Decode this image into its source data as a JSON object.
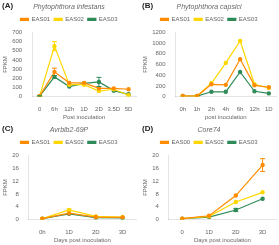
{
  "chart_data": [
    {
      "type": "line",
      "title": "Phytophthora infestans",
      "annotations": [
        "(A)"
      ],
      "xlabel": "Post inoculation",
      "ylabel": "FPKM",
      "categories": [
        "0",
        "6h",
        "12h",
        "1D",
        "2D",
        "3.5D",
        "5D"
      ],
      "series": [
        {
          "name": "EAS01",
          "color": "#FF8C00",
          "values": [
            5,
            270,
            150,
            150,
            90,
            90,
            80
          ],
          "yerr": [
            5,
            40,
            0,
            0,
            0,
            0,
            0
          ]
        },
        {
          "name": "EAS02",
          "color": "#FFD700",
          "values": [
            5,
            550,
            130,
            130,
            60,
            80,
            15
          ],
          "yerr": [
            5,
            50,
            0,
            0,
            0,
            0,
            0
          ]
        },
        {
          "name": "EAS03",
          "color": "#2E8B57",
          "values": [
            5,
            215,
            110,
            145,
            160,
            65,
            25
          ],
          "yerr": [
            5,
            15,
            0,
            0,
            50,
            0,
            0
          ]
        }
      ],
      "ylim": [
        0,
        700
      ],
      "yticks": [
        0,
        100,
        200,
        300,
        400,
        500,
        600,
        700
      ],
      "grid": false,
      "legend": "top",
      "marker": "circle"
    },
    {
      "type": "line",
      "title": "Phytophthora capsici",
      "annotations": [
        "(B)"
      ],
      "xlabel": "post inoculation",
      "ylabel": "FPKM",
      "categories": [
        "0h",
        "1h",
        "2h",
        "4h",
        "6h",
        "12h",
        "1D"
      ],
      "series": [
        {
          "name": "EAS01",
          "color": "#FF8C00",
          "values": [
            10,
            10,
            230,
            220,
            700,
            210,
            175
          ],
          "yerr": [
            0,
            0,
            0,
            0,
            0,
            0,
            0
          ]
        },
        {
          "name": "EAS02",
          "color": "#FFD700",
          "values": [
            10,
            10,
            250,
            630,
            1040,
            230,
            160
          ],
          "yerr": [
            0,
            0,
            0,
            0,
            0,
            0,
            0
          ]
        },
        {
          "name": "EAS03",
          "color": "#2E8B57",
          "values": [
            10,
            10,
            90,
            90,
            460,
            100,
            60
          ],
          "yerr": [
            0,
            0,
            0,
            0,
            0,
            0,
            0
          ]
        }
      ],
      "ylim": [
        0,
        1200
      ],
      "yticks": [
        0,
        200,
        400,
        600,
        800,
        1000,
        1200
      ],
      "grid": false,
      "legend": "top",
      "marker": "circle"
    },
    {
      "type": "line",
      "title": "Avrblb2-69P",
      "annotations": [
        "(C)"
      ],
      "xlabel": "Days post inoculation",
      "ylabel": "FPKM",
      "categories": [
        "0h",
        "1D",
        "2D",
        "3D"
      ],
      "series": [
        {
          "name": "EAS01",
          "color": "#FF8C00",
          "values": [
            0.3,
            2.0,
            0.8,
            0.7
          ],
          "yerr": [
            0,
            0,
            0,
            0
          ]
        },
        {
          "name": "EAS02",
          "color": "#FFD700",
          "values": [
            0.3,
            3.0,
            1.0,
            0.8
          ],
          "yerr": [
            0,
            0.3,
            0,
            0
          ]
        },
        {
          "name": "EAS03",
          "color": "#2E8B57",
          "values": [
            0.3,
            1.8,
            0.6,
            0.5
          ],
          "yerr": [
            0,
            0,
            0,
            0
          ]
        }
      ],
      "ylim": [
        0,
        20
      ],
      "yticks": [
        0,
        4,
        8,
        12,
        16,
        20
      ],
      "grid": false,
      "legend": "top",
      "marker": "circle"
    },
    {
      "type": "line",
      "title": "Core74",
      "annotations": [
        "(D)"
      ],
      "xlabel": "Days post inoculation",
      "ylabel": "FPKM",
      "categories": [
        "0",
        "1D",
        "2D",
        "3D"
      ],
      "series": [
        {
          "name": "EAS00",
          "color": "#FF8C00",
          "values": [
            0.3,
            1.2,
            7.5,
            17.0
          ],
          "yerr": [
            0,
            0,
            0,
            2.0
          ]
        },
        {
          "name": "EAS02",
          "color": "#FFD700",
          "values": [
            0.3,
            1.0,
            5.5,
            8.5
          ],
          "yerr": [
            0,
            0,
            0,
            0
          ]
        },
        {
          "name": "EAS03",
          "color": "#2E8B57",
          "values": [
            0.3,
            0.8,
            3.0,
            6.5
          ],
          "yerr": [
            0,
            0,
            0.5,
            0
          ]
        }
      ],
      "ylim": [
        0,
        20
      ],
      "yticks": [
        0,
        4,
        8,
        12,
        16,
        20
      ],
      "grid": false,
      "legend": "top",
      "marker": "circle"
    }
  ]
}
